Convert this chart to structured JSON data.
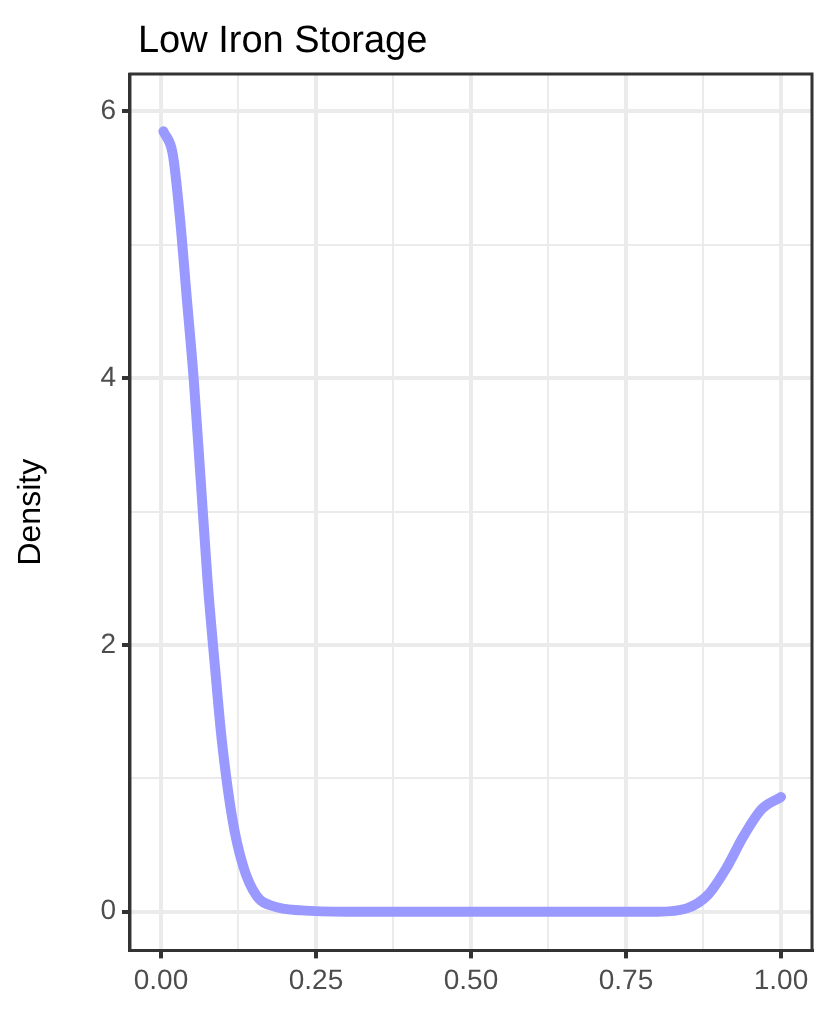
{
  "chart_data": {
    "type": "line",
    "title": "Low Iron Storage",
    "ylabel": "Density",
    "x": [
      0.004,
      0.019,
      0.03,
      0.042,
      0.053,
      0.064,
      0.075,
      0.087,
      0.098,
      0.115,
      0.132,
      0.154,
      0.182,
      0.227,
      0.3,
      0.4,
      0.5,
      0.6,
      0.7,
      0.8,
      0.848,
      0.882,
      0.911,
      0.94,
      0.969,
      1.0
    ],
    "series": [
      {
        "color": "#9999ff",
        "values": [
          5.85,
          5.68,
          5.23,
          4.58,
          3.98,
          3.24,
          2.49,
          1.84,
          1.29,
          0.7,
          0.35,
          0.12,
          0.04,
          0.01,
          0,
          0,
          0,
          0,
          0,
          0,
          0.025,
          0.125,
          0.32,
          0.57,
          0.77,
          0.86
        ]
      }
    ],
    "xlim": [
      -0.05,
      1.05
    ],
    "ylim": [
      -0.29,
      6.28
    ],
    "xticks": [
      {
        "value": 0,
        "label": "0.00"
      },
      {
        "value": 0.125,
        "label": null
      },
      {
        "value": 0.25,
        "label": "0.25"
      },
      {
        "value": 0.375,
        "label": null
      },
      {
        "value": 0.5,
        "label": "0.50"
      },
      {
        "value": 0.625,
        "label": null
      },
      {
        "value": 0.75,
        "label": "0.75"
      },
      {
        "value": 0.875,
        "label": null
      },
      {
        "value": 1,
        "label": "1.00"
      }
    ],
    "yticks": [
      0,
      {
        "value": 1,
        "label": null
      },
      2,
      {
        "value": 3,
        "label": null
      },
      4,
      {
        "value": 5,
        "label": null
      },
      6
    ],
    "grid": true,
    "legend": false,
    "marker": "none",
    "line_style": "solid"
  }
}
